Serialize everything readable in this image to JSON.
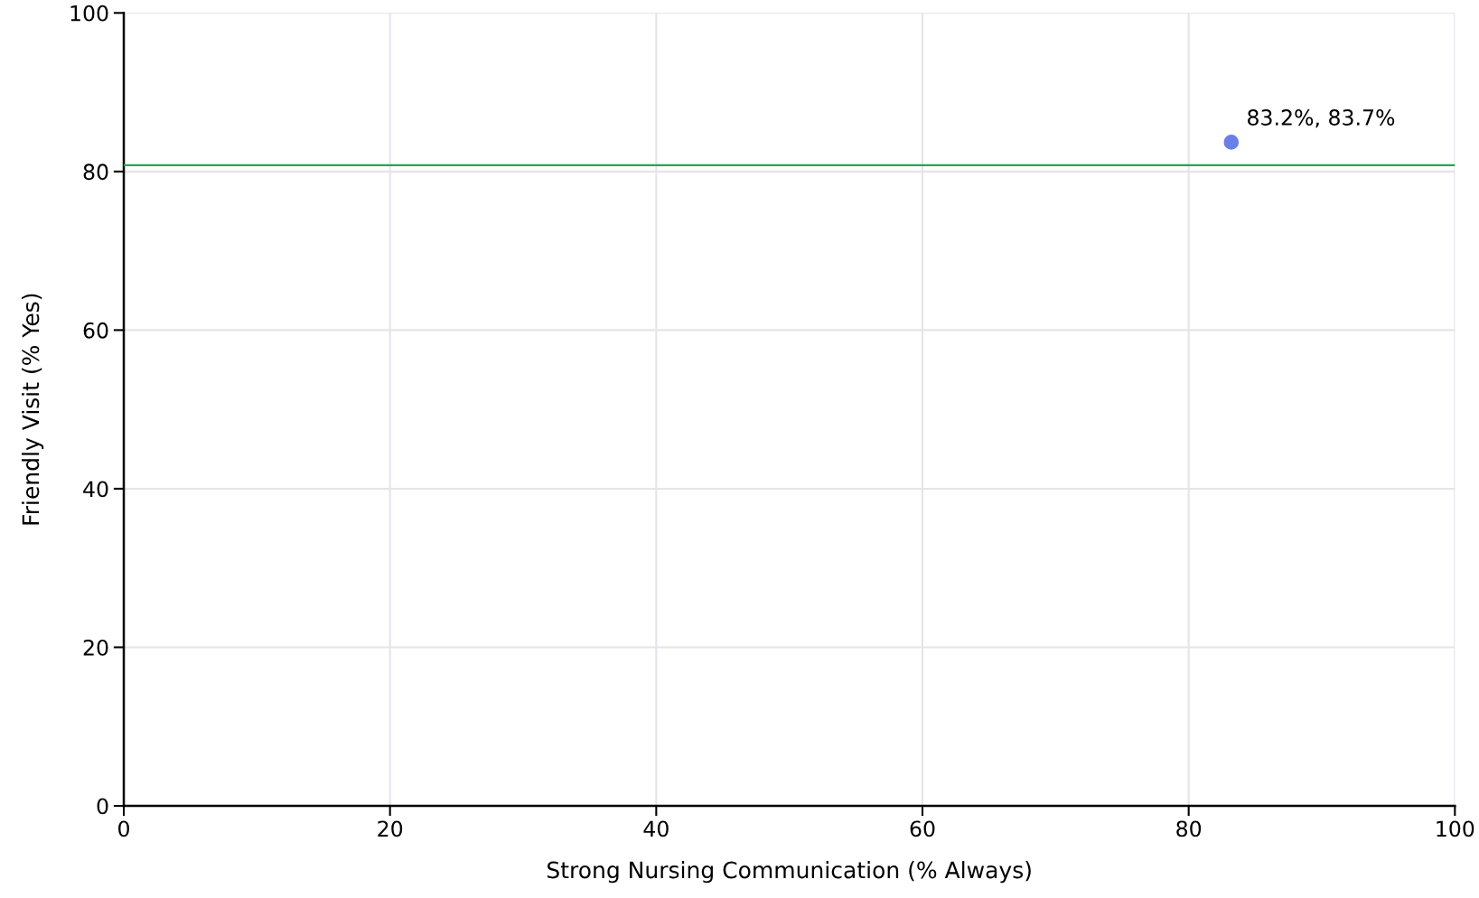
{
  "chart_data": {
    "type": "scatter",
    "xlabel": "Strong Nursing Communication (% Always)",
    "ylabel": "Friendly Visit (% Yes)",
    "x": [
      83.2
    ],
    "series": [
      {
        "color": "#6a7fe8",
        "values": [
          83.7
        ],
        "value_labels": [
          "83.2%, 83.7%"
        ]
      }
    ],
    "xlim": [
      0,
      100
    ],
    "ylim": [
      0,
      100
    ],
    "xticks": [
      0,
      20,
      40,
      60,
      80,
      100
    ],
    "yticks": [
      0,
      20,
      40,
      60,
      80,
      100
    ],
    "ref_lines": [
      {
        "axis": "y",
        "value": 80.8,
        "color": "#1aaa55"
      }
    ],
    "grid": true,
    "marker": "circle"
  }
}
